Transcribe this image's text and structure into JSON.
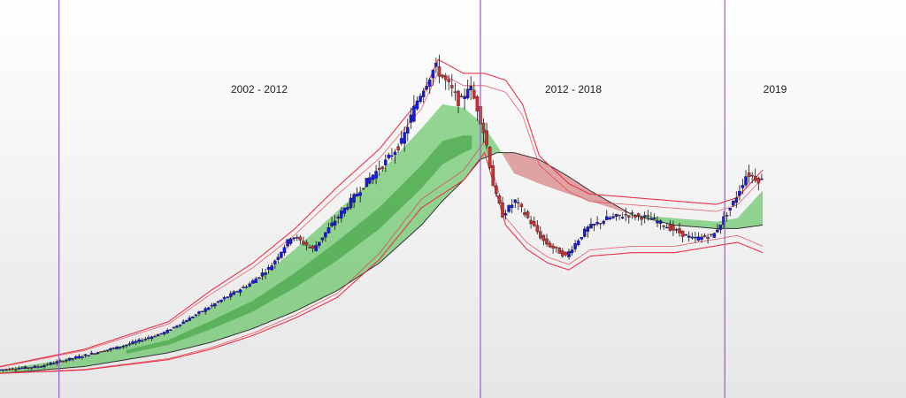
{
  "chart_data": {
    "type": "candlestick",
    "title": "",
    "xlabel": "",
    "ylabel": "",
    "grid": false,
    "legend": "none",
    "x_range": [
      2000.0,
      2021.5
    ],
    "y_range": [
      0,
      100
    ],
    "periods": [
      {
        "label": "2002 - 2012",
        "start": 2001.4,
        "end": 2011.4
      },
      {
        "label": "2012 - 2018",
        "start": 2011.4,
        "end": 2017.2
      },
      {
        "label": "2019",
        "start": 2017.2,
        "end": 2021.5
      }
    ],
    "colors": {
      "up_candle": "#1a1adc",
      "down_candle": "#c83232",
      "wick": "#111111",
      "bands": "#e8344a",
      "bull_cloud": "#3fb83f",
      "bear_cloud": "#c84040",
      "divider": "#9b59d0"
    },
    "price": {
      "x": [
        2000.0,
        2001.0,
        2002.0,
        2003.0,
        2004.0,
        2005.0,
        2006.0,
        2006.5,
        2007.0,
        2007.5,
        2008.0,
        2008.4,
        2008.8,
        2009.2,
        2009.6,
        2010.0,
        2010.4,
        2010.8,
        2011.0,
        2011.2,
        2011.4,
        2011.6,
        2011.8,
        2012.0,
        2012.3,
        2012.6,
        2013.0,
        2013.5,
        2014.0,
        2014.5,
        2015.0,
        2015.5,
        2016.0,
        2016.5,
        2017.0,
        2017.2,
        2017.5,
        2017.8,
        2018.1
      ],
      "y": [
        3,
        4,
        7,
        10,
        14,
        21,
        28,
        33,
        42,
        38,
        46,
        52,
        58,
        63,
        69,
        82,
        91,
        84,
        80,
        86,
        79,
        70,
        55,
        48,
        52,
        47,
        40,
        36,
        44,
        47,
        48,
        47,
        44,
        41,
        42,
        46,
        52,
        60,
        58
      ]
    },
    "upper_band": {
      "x": [
        2000.0,
        2002.0,
        2004.0,
        2005.0,
        2006.0,
        2007.0,
        2008.0,
        2009.0,
        2010.0,
        2010.4,
        2011.0,
        2011.5,
        2012.0,
        2012.4,
        2012.8,
        2013.5,
        2014.0,
        2015.0,
        2016.0,
        2017.0,
        2017.5,
        2018.1
      ],
      "y": [
        4,
        9,
        17,
        26,
        34,
        44,
        56,
        67,
        82,
        93,
        89,
        89,
        87,
        80,
        65,
        57,
        54,
        53,
        52,
        51,
        53,
        61
      ]
    },
    "lower_band": {
      "x": [
        2000.0,
        2002.0,
        2004.0,
        2005.0,
        2006.0,
        2007.0,
        2008.0,
        2009.0,
        2010.0,
        2011.0,
        2011.5,
        2012.0,
        2012.5,
        2013.0,
        2013.5,
        2014.0,
        2015.0,
        2016.0,
        2017.0,
        2017.5,
        2018.1
      ],
      "y": [
        2,
        3,
        6,
        9,
        13,
        18,
        24,
        35,
        50,
        58,
        66,
        45,
        38,
        34,
        32,
        36,
        37,
        37,
        39,
        40,
        37
      ]
    },
    "cloud_upper": {
      "x": [
        2000.0,
        2002.0,
        2004.0,
        2005.0,
        2006.0,
        2007.0,
        2008.0,
        2009.0,
        2010.0,
        2010.5,
        2011.0,
        2011.4,
        2011.8,
        2012.2,
        2012.8,
        2013.5,
        2014.0,
        2015.0,
        2016.0,
        2017.0,
        2017.5,
        2018.1
      ],
      "y": [
        3,
        7,
        14,
        21,
        28,
        38,
        49,
        60,
        73,
        80,
        79,
        75,
        68,
        60,
        57,
        54,
        52,
        48,
        47,
        46,
        47,
        55
      ]
    },
    "cloud_lower": {
      "x": [
        2000.0,
        2002.0,
        2004.0,
        2005.0,
        2006.0,
        2007.0,
        2008.0,
        2009.0,
        2010.0,
        2010.5,
        2011.0,
        2011.4,
        2011.8,
        2012.2,
        2012.8,
        2013.5,
        2014.0,
        2015.0,
        2016.0,
        2017.0,
        2017.5,
        2018.1
      ],
      "y": [
        2,
        4,
        8,
        11,
        15,
        20,
        26,
        34,
        45,
        52,
        58,
        64,
        66,
        66,
        64,
        59,
        55,
        48,
        45,
        44,
        44,
        45
      ]
    }
  }
}
